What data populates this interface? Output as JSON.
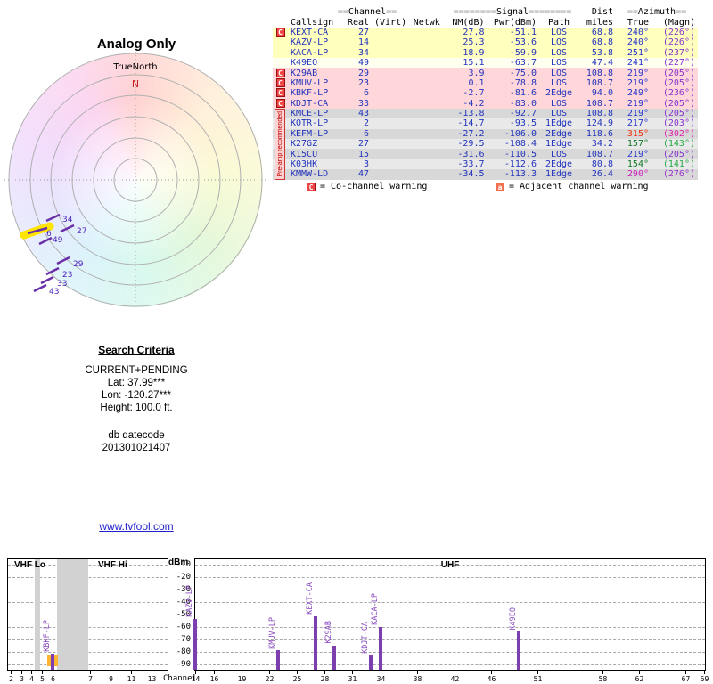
{
  "colors": {
    "accent_purple": "#7e3fae",
    "bar_label_purple": "#8a4bbf",
    "warning_red": "#cc0000",
    "highlight_yellow": "#ffe400",
    "highlight_orange": "#ffb434",
    "link_blue": "#2222cc",
    "data_text_blue": "#2233bb"
  },
  "radar": {
    "title": "Analog Only",
    "subtitle": "TrueNorth",
    "north_label": "N"
  },
  "table": {
    "group_headers": [
      {
        "pre": "==",
        "label": "Channel",
        "post": "=="
      },
      {
        "pre": "========",
        "label": "Signal",
        "post": "========"
      },
      {
        "pre": "",
        "label": "Dist",
        "post": ""
      },
      {
        "pre": "==",
        "label": "Azimuth",
        "post": "=="
      }
    ],
    "columns": [
      "Callsign",
      "Real",
      "(Virt)",
      "Netwk",
      "NM(dB)",
      "Pwr(dBm)",
      "Path",
      "miles",
      "True",
      "(Magn)"
    ],
    "rows": [
      {
        "callsign": "KEXT-CA",
        "real": "27",
        "virt": "",
        "netwk": "",
        "nm": "27.8",
        "pwr": "-51.1",
        "path": "LOS",
        "miles": "68.8",
        "az_true": "240°",
        "az_magn": "(226°)",
        "bg": "#ffffbe",
        "warn": "C",
        "tc": "#2233cc",
        "mc": "#8833cc"
      },
      {
        "callsign": "KAZV-LP",
        "real": "14",
        "virt": "",
        "netwk": "",
        "nm": "25.3",
        "pwr": "-53.6",
        "path": "LOS",
        "miles": "68.8",
        "az_true": "240°",
        "az_magn": "(226°)",
        "bg": "#ffffbe",
        "warn": "",
        "tc": "#2233cc",
        "mc": "#8833cc"
      },
      {
        "callsign": "KACA-LP",
        "real": "34",
        "virt": "",
        "netwk": "",
        "nm": "18.9",
        "pwr": "-59.9",
        "path": "LOS",
        "miles": "53.8",
        "az_true": "251°",
        "az_magn": "(237°)",
        "bg": "#ffffbe",
        "warn": "",
        "tc": "#2233cc",
        "mc": "#8833cc"
      },
      {
        "callsign": "K49EO",
        "real": "49",
        "virt": "",
        "netwk": "",
        "nm": "15.1",
        "pwr": "-63.7",
        "path": "LOS",
        "miles": "47.4",
        "az_true": "241°",
        "az_magn": "(227°)",
        "bg": "#fffff0",
        "warn": "",
        "tc": "#2233cc",
        "mc": "#8833cc"
      },
      {
        "callsign": "K29AB",
        "real": "29",
        "virt": "",
        "netwk": "",
        "nm": "3.9",
        "pwr": "-75.0",
        "path": "LOS",
        "miles": "108.8",
        "az_true": "219°",
        "az_magn": "(205°)",
        "bg": "#ffd7da",
        "warn": "C",
        "tc": "#2233cc",
        "mc": "#8833cc"
      },
      {
        "callsign": "KMUV-LP",
        "real": "23",
        "virt": "",
        "netwk": "",
        "nm": "0.1",
        "pwr": "-78.8",
        "path": "LOS",
        "miles": "108.7",
        "az_true": "219°",
        "az_magn": "(205°)",
        "bg": "#ffd7da",
        "warn": "C",
        "tc": "#2233cc",
        "mc": "#8833cc"
      },
      {
        "callsign": "KBKF-LP",
        "real": "6",
        "virt": "",
        "netwk": "",
        "nm": "-2.7",
        "pwr": "-81.6",
        "path": "2Edge",
        "miles": "94.0",
        "az_true": "249°",
        "az_magn": "(236°)",
        "bg": "#ffd7da",
        "warn": "C",
        "tc": "#2233cc",
        "mc": "#8833cc"
      },
      {
        "callsign": "KDJT-CA",
        "real": "33",
        "virt": "",
        "netwk": "",
        "nm": "-4.2",
        "pwr": "-83.0",
        "path": "LOS",
        "miles": "108.7",
        "az_true": "219°",
        "az_magn": "(205°)",
        "bg": "#ffd7da",
        "warn": "C",
        "tc": "#2233cc",
        "mc": "#8833cc"
      },
      {
        "callsign": "KMCE-LP",
        "real": "43",
        "virt": "",
        "netwk": "",
        "nm": "-13.8",
        "pwr": "-92.7",
        "path": "LOS",
        "miles": "108.8",
        "az_true": "219°",
        "az_magn": "(205°)",
        "bg": "#d8d8d8",
        "warn": "",
        "tc": "#2233cc",
        "mc": "#8833cc"
      },
      {
        "callsign": "KOTR-LP",
        "real": "2",
        "virt": "",
        "netwk": "",
        "nm": "-14.7",
        "pwr": "-93.5",
        "path": "1Edge",
        "miles": "124.9",
        "az_true": "217°",
        "az_magn": "(203°)",
        "bg": "#e9e9e9",
        "warn": "",
        "tc": "#2233cc",
        "mc": "#8833cc"
      },
      {
        "callsign": "KEFM-LP",
        "real": "6",
        "virt": "",
        "netwk": "",
        "nm": "-27.2",
        "pwr": "-106.0",
        "path": "2Edge",
        "miles": "118.6",
        "az_true": "315°",
        "az_magn": "(302°)",
        "bg": "#d8d8d8",
        "warn": "",
        "tc": "#ee3311",
        "mc": "#dd22aa"
      },
      {
        "callsign": "K27GZ",
        "real": "27",
        "virt": "",
        "netwk": "",
        "nm": "-29.5",
        "pwr": "-108.4",
        "path": "1Edge",
        "miles": "34.2",
        "az_true": "157°",
        "az_magn": "(143°)",
        "bg": "#e9e9e9",
        "warn": "",
        "tc": "#0f7722",
        "mc": "#22aa44"
      },
      {
        "callsign": "K15CU",
        "real": "15",
        "virt": "",
        "netwk": "",
        "nm": "-31.6",
        "pwr": "-110.5",
        "path": "LOS",
        "miles": "108.7",
        "az_true": "219°",
        "az_magn": "(205°)",
        "bg": "#d8d8d8",
        "warn": "",
        "tc": "#2233cc",
        "mc": "#8833cc"
      },
      {
        "callsign": "K03HK",
        "real": "3",
        "virt": "",
        "netwk": "",
        "nm": "-33.7",
        "pwr": "-112.6",
        "path": "2Edge",
        "miles": "80.8",
        "az_true": "154°",
        "az_magn": "(141°)",
        "bg": "#e9e9e9",
        "warn": "",
        "tc": "#0f7722",
        "mc": "#22aa44"
      },
      {
        "callsign": "KMMW-LD",
        "real": "47",
        "virt": "",
        "netwk": "",
        "nm": "-34.5",
        "pwr": "-113.3",
        "path": "1Edge",
        "miles": "26.4",
        "az_true": "290°",
        "az_magn": "(276°)",
        "bg": "#d8d8d8",
        "warn": "",
        "tc": "#cc22bb",
        "mc": "#9933cc"
      }
    ],
    "preamp_note": "Pre-amp recommended"
  },
  "legend": {
    "c_symbol": "C",
    "c_text": "= Co-channel warning",
    "a_symbol": "a",
    "a_text": "= Adjacent channel warning"
  },
  "search": {
    "heading": "Search Criteria",
    "lines": [
      "CURRENT+PENDING",
      "Lat: 37.99***",
      "Lon: -120.27***",
      "Height: 100.0 ft."
    ],
    "db_lines": [
      "db datecode",
      "201301021407"
    ]
  },
  "link": {
    "text": "www.tvfool.com"
  },
  "chart_data": [
    {
      "type": "scatter",
      "orientation": "polar",
      "title": "Analog Only",
      "subtitle": "TrueNorth",
      "note": "Stations plotted by true azimuth (degrees) and distance (miles); point labels are real channel numbers",
      "points": [
        {
          "label": "34",
          "station": "KACA-LP",
          "azimuth_true": 251,
          "distance_miles": 53.8,
          "highlight": false
        },
        {
          "label": "27",
          "station": "KEXT-CA",
          "azimuth_true": 240,
          "distance_miles": 68.8,
          "highlight": false
        },
        {
          "label": "6",
          "station": "KBKF-LP",
          "azimuth_true": 249,
          "distance_miles": 94.0,
          "highlight": true
        },
        {
          "label": "49",
          "station": "K49EO",
          "azimuth_true": 241,
          "distance_miles": 47.4,
          "highlight": false
        },
        {
          "label": "29",
          "station": "K29AB",
          "azimuth_true": 219,
          "distance_miles": 108.8,
          "highlight": false
        },
        {
          "label": "23",
          "station": "KMUV-LP",
          "azimuth_true": 219,
          "distance_miles": 108.7,
          "highlight": false
        },
        {
          "label": "33",
          "station": "KDJT-CA",
          "azimuth_true": 219,
          "distance_miles": 108.7,
          "highlight": false
        },
        {
          "label": "43",
          "station": "KMCE-LP",
          "azimuth_true": 219,
          "distance_miles": 108.8,
          "highlight": false
        }
      ]
    },
    {
      "type": "bar",
      "ylabel": "dBm",
      "xlabel": "Channel",
      "ylim": [
        -95,
        -5
      ],
      "yticks": [
        -10,
        -20,
        -30,
        -40,
        -50,
        -60,
        -70,
        -80,
        -90
      ],
      "grid": "dashed",
      "panels": [
        {
          "label": "VHF Lo"
        },
        {
          "label": "VHF Hi"
        },
        {
          "label": "UHF"
        }
      ],
      "vhf_tick_channels": [
        2,
        3,
        4,
        5,
        6,
        7,
        9,
        11,
        13
      ],
      "uhf_tick_channels": [
        14,
        16,
        19,
        22,
        25,
        28,
        31,
        34,
        38,
        42,
        46,
        51,
        58,
        62,
        67,
        69
      ],
      "bars": [
        {
          "station": "KBKF-LP",
          "channel": 6,
          "dbm": -81.6,
          "band": "VHF",
          "highlight": true
        },
        {
          "station": "KAZV-LP",
          "channel": 14,
          "dbm": -53.6,
          "band": "UHF",
          "highlight": false
        },
        {
          "station": "KMUV-LP",
          "channel": 23,
          "dbm": -78.8,
          "band": "UHF",
          "highlight": false
        },
        {
          "station": "KEXT-CA",
          "channel": 27,
          "dbm": -51.1,
          "band": "UHF",
          "highlight": false
        },
        {
          "station": "K29AB",
          "channel": 29,
          "dbm": -75.0,
          "band": "UHF",
          "highlight": false
        },
        {
          "station": "KDJT-CA",
          "channel": 33,
          "dbm": -83.0,
          "band": "UHF",
          "highlight": false
        },
        {
          "station": "KACA-LP",
          "channel": 34,
          "dbm": -59.9,
          "band": "UHF",
          "highlight": false
        },
        {
          "station": "K49EO",
          "channel": 49,
          "dbm": -63.7,
          "band": "UHF",
          "highlight": false
        }
      ]
    }
  ]
}
